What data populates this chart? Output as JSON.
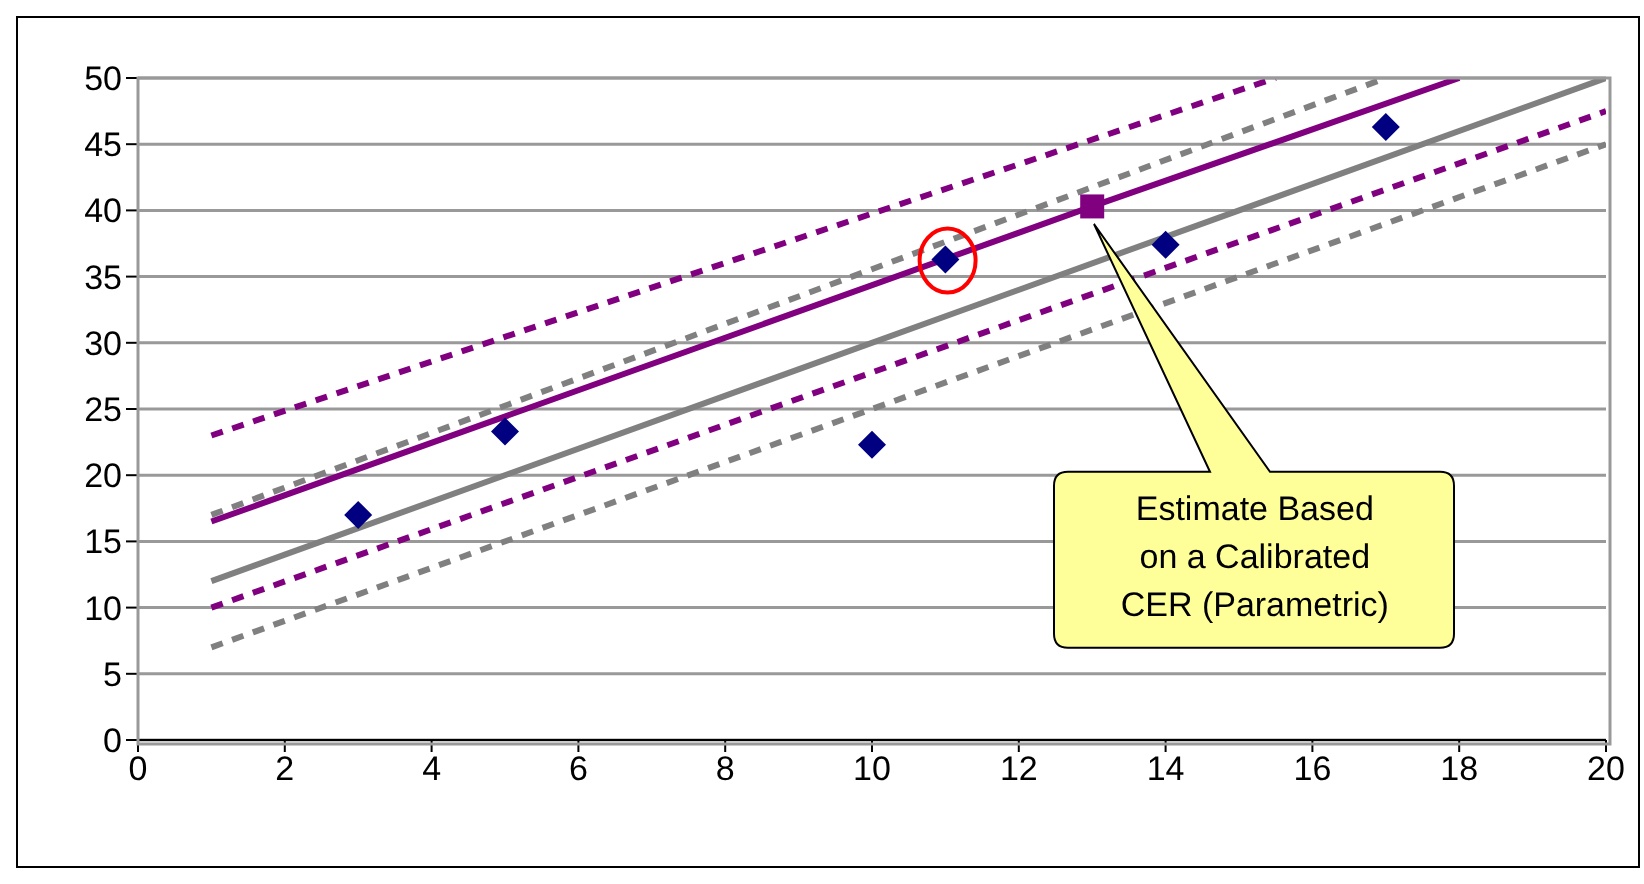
{
  "chart_data": {
    "type": "line",
    "xlim": [
      0,
      20
    ],
    "xticks": [
      0,
      2,
      4,
      6,
      8,
      10,
      12,
      14,
      16,
      18,
      20
    ],
    "ylim": [
      0,
      50
    ],
    "yticks": [
      0,
      5,
      10,
      15,
      20,
      25,
      30,
      35,
      40,
      45,
      50
    ],
    "grid": "y",
    "legend": false,
    "series": [
      {
        "color": "#808080",
        "line_style": "solid",
        "marker": "none",
        "x": [
          1,
          2,
          20
        ],
        "values": [
          12,
          14,
          50
        ]
      },
      {
        "color": "#808080",
        "line_style": "dashed",
        "marker": "none",
        "x": [
          1,
          17
        ],
        "values": [
          17,
          50
        ]
      },
      {
        "color": "#808080",
        "line_style": "dashed",
        "marker": "none",
        "x": [
          1,
          20
        ],
        "values": [
          7,
          45
        ]
      },
      {
        "color": "#800080",
        "line_style": "solid",
        "marker": "none",
        "x": [
          1,
          13,
          18
        ],
        "values": [
          16.5,
          40.3,
          50
        ]
      },
      {
        "color": "#800080",
        "line_style": "dashed",
        "marker": "none",
        "x": [
          1,
          15.5
        ],
        "values": [
          23,
          50
        ]
      },
      {
        "color": "#800080",
        "line_style": "dashed",
        "marker": "none",
        "x": [
          1,
          20
        ],
        "values": [
          10,
          47.5
        ]
      },
      {
        "type": "scatter",
        "color": "#000080",
        "marker": "diamond",
        "x": [
          3,
          5,
          10,
          11,
          14,
          17
        ],
        "values": [
          17,
          23.3,
          22.3,
          36.3,
          37.4,
          46.3
        ]
      },
      {
        "type": "scatter",
        "color": "#800080",
        "marker": "square",
        "x": [
          13
        ],
        "values": [
          40.3
        ]
      }
    ],
    "annotations": [
      "Estimate Based on a Calibrated CER (Parametric)"
    ]
  }
}
